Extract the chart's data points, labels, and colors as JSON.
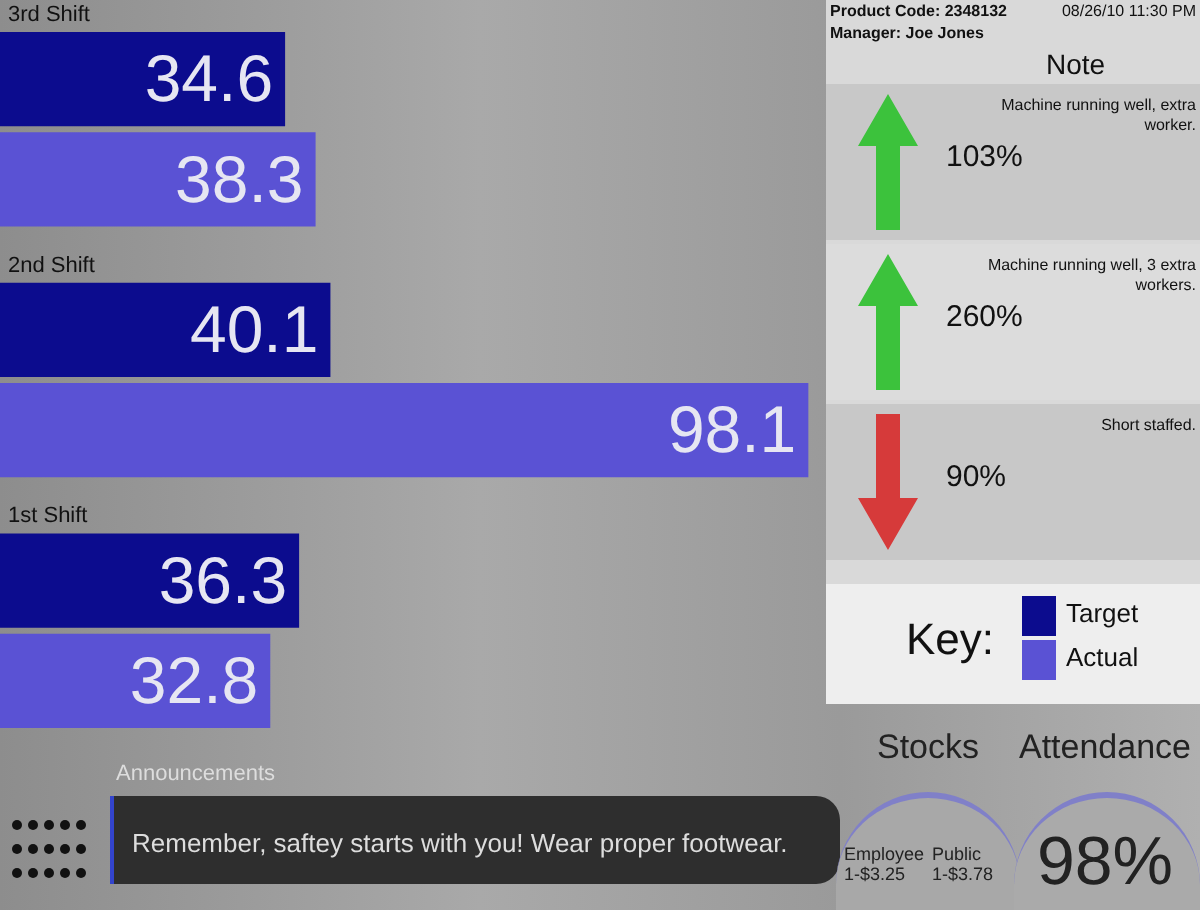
{
  "chart_data": [
    {
      "type": "bar",
      "orientation": "horizontal",
      "categories": [
        "3rd Shift",
        "2nd Shift",
        "1st Shift"
      ],
      "series": [
        {
          "name": "Target",
          "color": "#0c0c8e",
          "values": [
            34.6,
            40.1,
            36.3
          ]
        },
        {
          "name": "Actual",
          "color": "#5a52d4",
          "values": [
            38.3,
            98.1,
            32.8
          ]
        }
      ],
      "tick_labels": "y",
      "data_labels": true,
      "legend": "right",
      "legend_title": "Key:"
    },
    {
      "type": "other",
      "title": "Note",
      "annotations": [
        "Product Code: 2348132",
        "08/26/10 11:30 PM",
        "Manager: Joe Jones",
        "103%",
        "Machine running well, extra worker.",
        "260%",
        "Machine running well, 3 extra workers.",
        "90%",
        "Short staffed."
      ]
    },
    {
      "type": "other",
      "title": "Announcements",
      "annotations": [
        "Remember, saftey starts with you! Wear proper footwear."
      ]
    },
    {
      "type": "other",
      "title": "Stocks",
      "annotations": [
        "Employee 1-$3.25",
        "Public 1-$3.78"
      ]
    },
    {
      "type": "other",
      "title": "Attendance",
      "annotations": [
        "98%"
      ]
    }
  ]
}
